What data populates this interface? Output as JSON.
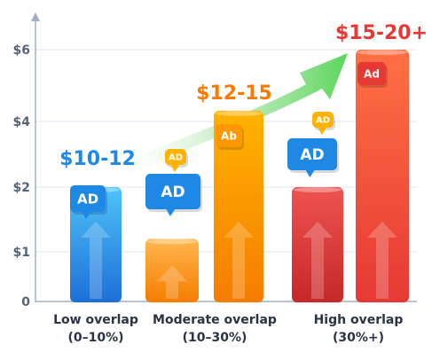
{
  "chart_data": {
    "type": "bar",
    "title": "",
    "xlabel": "",
    "ylabel": "",
    "ylim": [
      0,
      6.5
    ],
    "yticks": [
      "0",
      "$1",
      "$2",
      "$4",
      "$6"
    ],
    "categories": [
      [
        "Low overlap",
        "(0–10%)"
      ],
      [
        "Moderate overlap",
        "(10–30%)"
      ],
      [
        "High overlap",
        "(30%+)"
      ]
    ],
    "bars": [
      {
        "group": 0,
        "value": 2.0,
        "color_top": "#4fc3f7",
        "color_bottom": "#1e6fd9"
      },
      {
        "group": 1,
        "value": 1.2,
        "color_top": "#ffb74d",
        "color_bottom": "#f57c00"
      },
      {
        "group": 1,
        "value": 4.3,
        "color_top": "#ffb300",
        "color_bottom": "#f57c00"
      },
      {
        "group": 2,
        "value": 2.0,
        "color_top": "#ef5350",
        "color_bottom": "#c62828"
      },
      {
        "group": 2,
        "value": 6.0,
        "color_top": "#ff7043",
        "color_bottom": "#e53935"
      }
    ],
    "value_labels": [
      {
        "text": "$10-12",
        "color": "#1e88e5"
      },
      {
        "text": "$12-15",
        "color": "#f57c00"
      },
      {
        "text": "$15-20+",
        "color": "#e53935"
      }
    ],
    "ad_badges": [
      {
        "text": "AD",
        "color": "#1e88e5"
      },
      {
        "text": "AD",
        "color": "#1e88e5"
      },
      {
        "text": "AD",
        "color": "#ffb300"
      },
      {
        "text": "Ab",
        "color": "#ff9800"
      },
      {
        "text": "AD",
        "color": "#1e88e5"
      },
      {
        "text": "AD",
        "color": "#ffb300"
      },
      {
        "text": "Ad",
        "color": "#e53935"
      }
    ],
    "trend_arrow_color": "#5bd65b",
    "grid": true
  }
}
